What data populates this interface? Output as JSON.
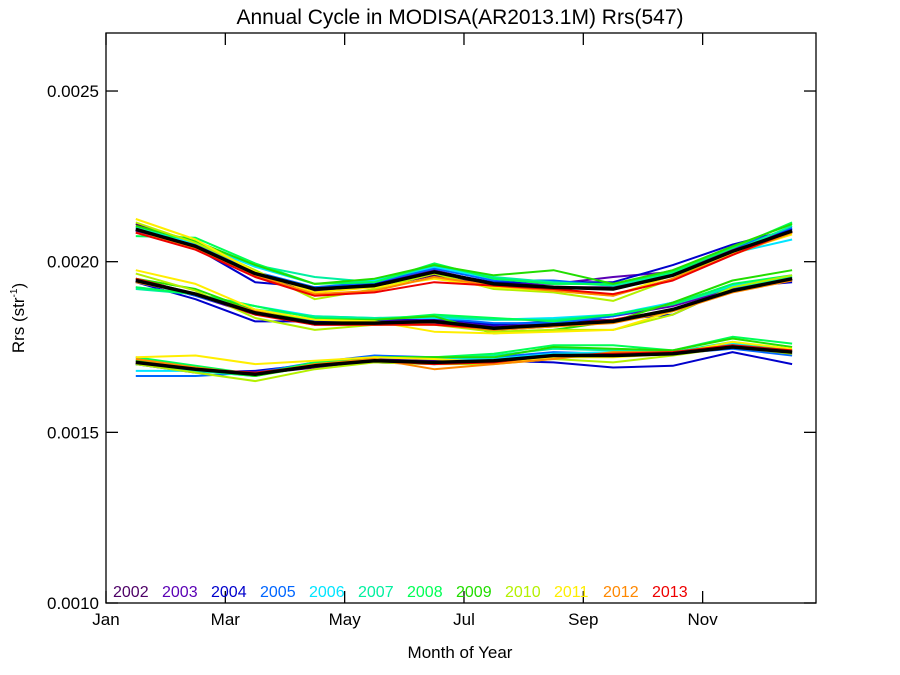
{
  "chart_data": {
    "type": "line",
    "title": "Annual Cycle in MODISA(AR2013.1M) Rrs(547)",
    "xlabel": "Month of Year",
    "ylabel": "Rrs (str",
    "ylabel_sup": "-1",
    "ylabel_end": ")",
    "xlim": [
      1,
      12.9
    ],
    "ylim": [
      0.001,
      0.00267
    ],
    "grid": false,
    "legend_position": "bottom-left, inside plot",
    "x_ticks": [
      {
        "v": 1,
        "label": "Jan"
      },
      {
        "v": 3,
        "label": "Mar"
      },
      {
        "v": 5,
        "label": "May"
      },
      {
        "v": 7,
        "label": "Jul"
      },
      {
        "v": 9,
        "label": "Sep"
      },
      {
        "v": 11,
        "label": "Nov"
      }
    ],
    "y_ticks": [
      {
        "v": 0.001,
        "label": "0.0010"
      },
      {
        "v": 0.0015,
        "label": "0.0015"
      },
      {
        "v": 0.002,
        "label": "0.0020"
      },
      {
        "v": 0.0025,
        "label": "0.0025"
      }
    ],
    "x": [
      1.5,
      2.5,
      3.5,
      4.5,
      5.5,
      6.5,
      7.5,
      8.5,
      9.5,
      10.5,
      11.5,
      12.5
    ],
    "groups": [
      "upper",
      "middle",
      "lower"
    ],
    "mean_color": "#000000",
    "mean": {
      "upper": [
        0.002095,
        0.002045,
        0.001965,
        0.00192,
        0.00193,
        0.00197,
        0.001935,
        0.001925,
        0.00192,
        0.00196,
        0.00203,
        0.00209
      ],
      "middle": [
        0.001945,
        0.001905,
        0.00185,
        0.00182,
        0.00182,
        0.001825,
        0.001805,
        0.001815,
        0.001825,
        0.00186,
        0.001915,
        0.00195
      ],
      "lower": [
        0.001705,
        0.001685,
        0.00167,
        0.001695,
        0.00171,
        0.001705,
        0.00171,
        0.001725,
        0.001725,
        0.00173,
        0.00175,
        0.001735
      ]
    },
    "series": [
      {
        "name": "2002",
        "color": "#4d0066",
        "upper": [
          0.00211,
          0.00205,
          0.00196,
          0.001915,
          0.001925,
          0.00196,
          0.00193,
          0.001925,
          0.001925,
          0.001965,
          0.00203,
          0.00209
        ],
        "middle": [
          0.00195,
          0.001905,
          0.00185,
          0.001815,
          0.001815,
          0.00182,
          0.0018,
          0.00181,
          0.001825,
          0.00186,
          0.001915,
          0.00195
        ],
        "lower": [
          0.00171,
          0.001685,
          0.00167,
          0.00169,
          0.00171,
          0.001705,
          0.001705,
          0.00172,
          0.001725,
          0.00173,
          0.00175,
          0.001735
        ]
      },
      {
        "name": "2003",
        "color": "#5a00b5",
        "upper": [
          0.00209,
          0.00204,
          0.00196,
          0.00192,
          0.001935,
          0.001975,
          0.001935,
          0.001935,
          0.001955,
          0.00197,
          0.002035,
          0.002095
        ],
        "middle": [
          0.001945,
          0.0019,
          0.001845,
          0.001825,
          0.001825,
          0.00183,
          0.00181,
          0.00182,
          0.00184,
          0.00187,
          0.00192,
          0.00195
        ],
        "lower": [
          0.0017,
          0.00168,
          0.00167,
          0.001695,
          0.001715,
          0.00171,
          0.001715,
          0.00173,
          0.00173,
          0.001735,
          0.00175,
          0.00173
        ]
      },
      {
        "name": "2004",
        "color": "#0000cc",
        "upper": [
          0.0021,
          0.00204,
          0.00194,
          0.001925,
          0.001935,
          0.00197,
          0.00194,
          0.00194,
          0.00194,
          0.00199,
          0.00205,
          0.002095
        ],
        "middle": [
          0.00194,
          0.00189,
          0.001825,
          0.001825,
          0.00183,
          0.001835,
          0.001815,
          0.001825,
          0.00183,
          0.001845,
          0.001925,
          0.00194
        ],
        "lower": [
          0.0017,
          0.001675,
          0.00168,
          0.0017,
          0.001705,
          0.0017,
          0.00171,
          0.001705,
          0.00169,
          0.001695,
          0.001735,
          0.0017
        ]
      },
      {
        "name": "2005",
        "color": "#0066ff",
        "upper": [
          0.002095,
          0.00205,
          0.00197,
          0.001925,
          0.00194,
          0.00198,
          0.001945,
          0.001945,
          0.00193,
          0.001975,
          0.00204,
          0.0021
        ],
        "middle": [
          0.001945,
          0.0019,
          0.00185,
          0.00183,
          0.001835,
          0.001835,
          0.00182,
          0.00182,
          0.00184,
          0.00188,
          0.001925,
          0.001945
        ],
        "lower": [
          0.001665,
          0.001665,
          0.001675,
          0.001705,
          0.001725,
          0.00172,
          0.00172,
          0.001735,
          0.00173,
          0.00173,
          0.001745,
          0.001725
        ]
      },
      {
        "name": "2006",
        "color": "#00e5ff",
        "upper": [
          0.002095,
          0.002055,
          0.001985,
          0.001935,
          0.001945,
          0.001985,
          0.00195,
          0.001935,
          0.001935,
          0.00196,
          0.002025,
          0.002065
        ],
        "middle": [
          0.001925,
          0.001905,
          0.00187,
          0.00184,
          0.001835,
          0.001835,
          0.00183,
          0.001835,
          0.001845,
          0.00188,
          0.00193,
          0.001955
        ],
        "lower": [
          0.00168,
          0.00168,
          0.001665,
          0.0017,
          0.00172,
          0.001715,
          0.001715,
          0.00173,
          0.001735,
          0.001735,
          0.00176,
          0.001735
        ]
      },
      {
        "name": "2007",
        "color": "#00f0a0",
        "upper": [
          0.0021,
          0.00206,
          0.00199,
          0.001955,
          0.00194,
          0.00199,
          0.001955,
          0.00194,
          0.00193,
          0.001965,
          0.00203,
          0.002105
        ],
        "middle": [
          0.00192,
          0.001905,
          0.00186,
          0.00184,
          0.001835,
          0.00184,
          0.00183,
          0.00183,
          0.001845,
          0.001875,
          0.001925,
          0.001955
        ],
        "lower": [
          0.0017,
          0.00168,
          0.001665,
          0.0017,
          0.00172,
          0.00172,
          0.001725,
          0.001745,
          0.00174,
          0.001735,
          0.001765,
          0.00174
        ]
      },
      {
        "name": "2008",
        "color": "#00ff55",
        "upper": [
          0.002075,
          0.00207,
          0.001995,
          0.001935,
          0.00194,
          0.001995,
          0.00195,
          0.001935,
          0.001935,
          0.00197,
          0.00204,
          0.002115
        ],
        "middle": [
          0.001925,
          0.001905,
          0.00187,
          0.001835,
          0.00183,
          0.001845,
          0.001835,
          0.001825,
          0.001845,
          0.001875,
          0.001935,
          0.00196
        ],
        "lower": [
          0.00172,
          0.001695,
          0.00167,
          0.001705,
          0.00172,
          0.00172,
          0.00173,
          0.001755,
          0.001755,
          0.00174,
          0.00178,
          0.00176
        ]
      },
      {
        "name": "2009",
        "color": "#22dd00",
        "upper": [
          0.002105,
          0.00206,
          0.00199,
          0.001935,
          0.00195,
          0.00199,
          0.00196,
          0.001975,
          0.001935,
          0.001975,
          0.002045,
          0.00211
        ],
        "middle": [
          0.00195,
          0.00192,
          0.001855,
          0.00183,
          0.00183,
          0.00184,
          0.00179,
          0.0018,
          0.001825,
          0.00188,
          0.001945,
          0.001975
        ],
        "lower": [
          0.00171,
          0.001685,
          0.001665,
          0.001695,
          0.00172,
          0.00172,
          0.00172,
          0.00175,
          0.001745,
          0.00174,
          0.001775,
          0.00175
        ]
      },
      {
        "name": "2010",
        "color": "#b4f000",
        "upper": [
          0.002115,
          0.002055,
          0.001975,
          0.00189,
          0.00192,
          0.001965,
          0.00192,
          0.00191,
          0.001885,
          0.00195,
          0.00203,
          0.00209
        ],
        "middle": [
          0.001965,
          0.001915,
          0.001835,
          0.0018,
          0.001815,
          0.001815,
          0.001795,
          0.0018,
          0.0018,
          0.001845,
          0.001925,
          0.00196
        ],
        "lower": [
          0.0017,
          0.001675,
          0.00165,
          0.001685,
          0.001705,
          0.0017,
          0.0017,
          0.001715,
          0.001705,
          0.001725,
          0.00175,
          0.00173
        ]
      },
      {
        "name": "2011",
        "color": "#ffee00",
        "upper": [
          0.002125,
          0.002065,
          0.00197,
          0.00191,
          0.001925,
          0.00195,
          0.001925,
          0.001915,
          0.0019,
          0.00196,
          0.002025,
          0.00208
        ],
        "middle": [
          0.001975,
          0.001935,
          0.00186,
          0.00183,
          0.001825,
          0.001795,
          0.00179,
          0.001795,
          0.0018,
          0.001855,
          0.001915,
          0.00195
        ],
        "lower": [
          0.00172,
          0.001725,
          0.0017,
          0.00171,
          0.00172,
          0.001715,
          0.001705,
          0.00172,
          0.00172,
          0.00173,
          0.001765,
          0.001745
        ]
      },
      {
        "name": "2012",
        "color": "#ff8800",
        "upper": [
          0.002085,
          0.00204,
          0.00196,
          0.001905,
          0.001915,
          0.001955,
          0.00193,
          0.001915,
          0.0019,
          0.00195,
          0.00202,
          0.002085
        ],
        "middle": [
          0.00194,
          0.001905,
          0.001855,
          0.00182,
          0.00182,
          0.001815,
          0.0018,
          0.00181,
          0.00182,
          0.001855,
          0.00191,
          0.001945
        ],
        "lower": [
          0.001715,
          0.00169,
          0.00167,
          0.0017,
          0.001715,
          0.001685,
          0.0017,
          0.001715,
          0.001735,
          0.001735,
          0.001755,
          0.001735
        ]
      },
      {
        "name": "2013",
        "color": "#ee0000",
        "upper": [
          0.002085,
          0.002035,
          0.001955,
          0.0019,
          0.00191,
          0.00194,
          0.00193,
          0.00192,
          0.001905,
          0.001945,
          0.00202,
          0.00209
        ],
        "middle": [
          0.00195,
          0.001905,
          0.001845,
          0.001815,
          0.001815,
          0.001815,
          0.001805,
          0.001815,
          0.00183,
          0.00186,
          0.001915,
          0.00195
        ],
        "lower": [
          0.001705,
          0.001685,
          0.001675,
          0.001695,
          0.00171,
          0.0017,
          0.001705,
          0.001725,
          0.00173,
          0.001735,
          0.001755,
          0.00174
        ]
      }
    ]
  }
}
